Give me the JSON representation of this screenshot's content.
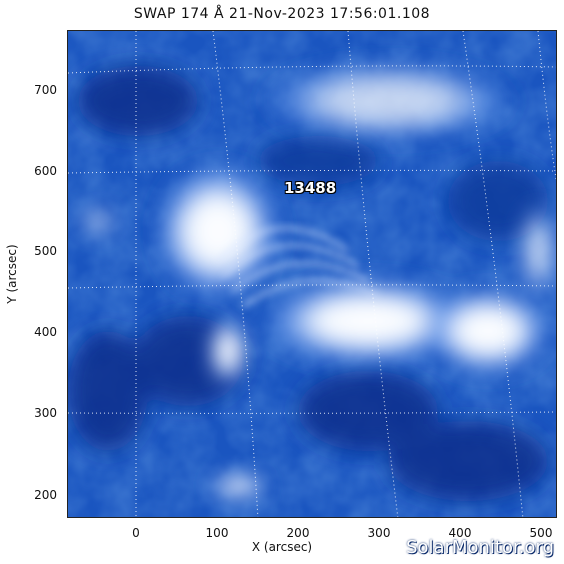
{
  "title": "SWAP 174 Å 21-Nov-2023 17:56:01.108",
  "colors": {
    "background": "#0b2f8a",
    "midtone": "#1f5fc8",
    "bright": "#ffffff"
  },
  "axes": {
    "xlabel": "X (arcsec)",
    "ylabel": "Y (arcsec)",
    "xticks": [
      "0",
      "100",
      "200",
      "300",
      "400",
      "500"
    ],
    "yticks": [
      "200",
      "300",
      "400",
      "500",
      "600",
      "700"
    ]
  },
  "region_label": "13488",
  "watermark": "SolarMonitor.org"
}
